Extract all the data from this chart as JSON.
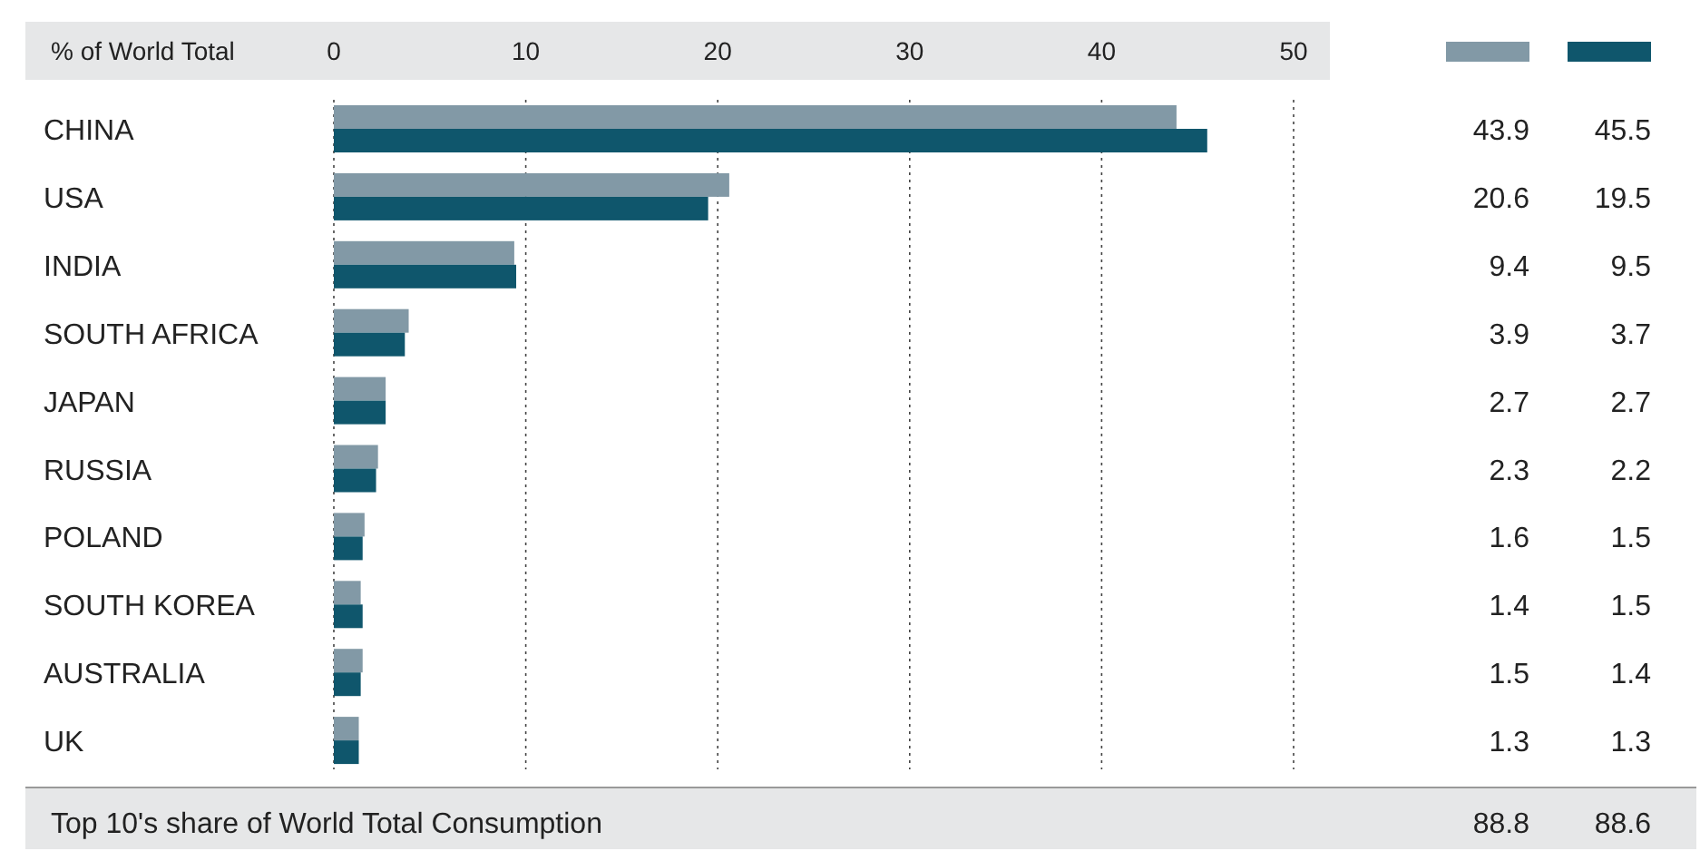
{
  "chart_data": {
    "type": "bar",
    "orientation": "horizontal",
    "xlabel": "% of World Total",
    "categories": [
      "CHINA",
      "USA",
      "INDIA",
      "SOUTH AFRICA",
      "JAPAN",
      "RUSSIA",
      "POLAND",
      "SOUTH KOREA",
      "AUSTRALIA",
      "UK"
    ],
    "series": [
      {
        "color": "#8299a6",
        "values": [
          43.9,
          20.6,
          9.4,
          3.9,
          2.7,
          2.3,
          1.6,
          1.4,
          1.5,
          1.3
        ]
      },
      {
        "color": "#0f566c",
        "values": [
          45.5,
          19.5,
          9.5,
          3.7,
          2.7,
          2.2,
          1.5,
          1.5,
          1.4,
          1.3
        ]
      }
    ],
    "xlim": [
      0,
      50
    ],
    "xticks": [
      0,
      10,
      20,
      30,
      40,
      50
    ],
    "grid": "x",
    "data_labels": true,
    "annotations": [
      "Top 10's share of World Total Consumption",
      "88.8",
      "88.6"
    ]
  }
}
